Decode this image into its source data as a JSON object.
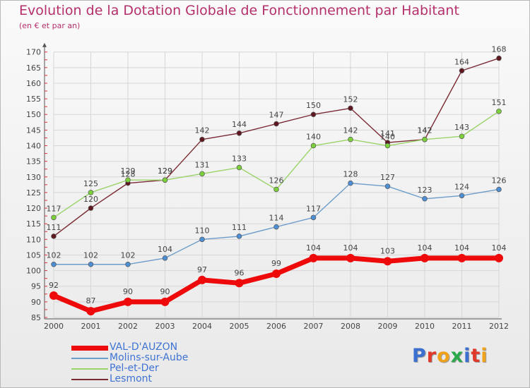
{
  "title": "Evolution de la Dotation Globale de Fonctionnement par Habitant",
  "subtitle": "(en € et par an)",
  "logo_text": "Proxiti",
  "colors": {
    "title": "#b5306b",
    "legend_text": "#3f73d4",
    "grid": "#d6d6d6",
    "axis": "#555555",
    "axis_tick": "#e03030"
  },
  "chart_data": {
    "type": "line",
    "x": [
      "2000",
      "2001",
      "2002",
      "2003",
      "2004",
      "2005",
      "2006",
      "2007",
      "2008",
      "2009",
      "2010",
      "2011",
      "2012"
    ],
    "ylim": [
      85,
      170
    ],
    "yticks": [
      85,
      90,
      95,
      100,
      105,
      110,
      115,
      120,
      125,
      130,
      135,
      140,
      145,
      150,
      155,
      160,
      165,
      170
    ],
    "grid": true,
    "legend_position": "bottom-left",
    "series": [
      {
        "name": "VAL-D'AUZON",
        "color": "#ee0a0a",
        "marker": "#ee0a0a",
        "values": [
          92,
          87,
          90,
          90,
          97,
          96,
          99,
          104,
          104,
          103,
          104,
          104,
          104
        ]
      },
      {
        "name": "Molins-sur-Aube",
        "color": "#6c9cc9",
        "marker": "#4d8fd4",
        "values": [
          102,
          102,
          102,
          104,
          110,
          111,
          114,
          117,
          128,
          127,
          123,
          124,
          126
        ]
      },
      {
        "name": "Pel-et-Der",
        "color": "#9ad36a",
        "marker": "#7cd13a",
        "values": [
          117,
          125,
          129,
          129,
          131,
          133,
          126,
          140,
          142,
          140,
          142,
          143,
          151
        ]
      },
      {
        "name": "Lesmont",
        "color": "#7a2a33",
        "marker": "#5f1820",
        "values": [
          111,
          120,
          128,
          129,
          142,
          144,
          147,
          150,
          152,
          141,
          142,
          164,
          168
        ]
      }
    ],
    "data_labels": [
      [
        "92",
        "87",
        "90",
        "90",
        "97",
        "96",
        "99",
        "104",
        "104",
        "103",
        "104",
        "104",
        "104"
      ],
      [
        "102",
        "102",
        "102",
        "104",
        "110",
        "111",
        "114",
        "117",
        "128",
        "127",
        "123",
        "124",
        "126"
      ],
      [
        "117",
        "125",
        "129",
        "129",
        "131",
        "133",
        "126",
        "140",
        "142",
        "140",
        "142",
        "143",
        "151"
      ],
      [
        "111",
        "120",
        "128",
        "129",
        "142",
        "144",
        "147",
        "150",
        "152",
        "141",
        "142",
        "164",
        "168"
      ]
    ]
  }
}
